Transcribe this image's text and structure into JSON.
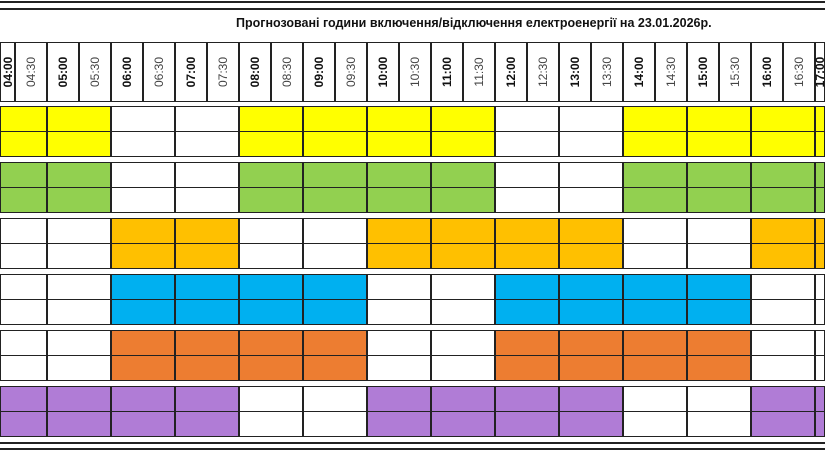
{
  "title": "Прогнозовані години включення/відключення електроенергії на 23.01.2026р.",
  "times": [
    "04:00",
    "04:30",
    "05:00",
    "05:30",
    "06:00",
    "06:30",
    "07:00",
    "07:30",
    "08:00",
    "08:30",
    "09:00",
    "09:30",
    "10:00",
    "10:30",
    "11:00",
    "11:30",
    "12:00",
    "12:30",
    "13:00",
    "13:30",
    "14:00",
    "14:30",
    "15:00",
    "15:30",
    "16:00",
    "16:30",
    "17:00"
  ],
  "hours": [
    "04:00",
    "05:00",
    "06:00",
    "07:00",
    "08:00",
    "09:00",
    "10:00",
    "11:00",
    "12:00",
    "13:00",
    "14:00",
    "15:00",
    "16:00",
    "17:00"
  ],
  "groups": [
    {
      "color": "#FFFF00",
      "on": [
        1,
        1,
        0,
        0,
        1,
        1,
        1,
        1,
        0,
        0,
        1,
        1,
        1,
        1
      ]
    },
    {
      "color": "#92D050",
      "on": [
        1,
        1,
        0,
        0,
        1,
        1,
        1,
        1,
        0,
        0,
        1,
        1,
        1,
        1
      ]
    },
    {
      "color": "#FFC000",
      "on": [
        0,
        0,
        1,
        1,
        0,
        0,
        1,
        1,
        1,
        1,
        0,
        0,
        1,
        1
      ]
    },
    {
      "color": "#00B0F0",
      "on": [
        0,
        0,
        1,
        1,
        1,
        1,
        0,
        0,
        1,
        1,
        1,
        1,
        0,
        0
      ]
    },
    {
      "color": "#ED7D31",
      "on": [
        0,
        0,
        1,
        1,
        1,
        1,
        0,
        0,
        1,
        1,
        1,
        1,
        0,
        0
      ]
    },
    {
      "color": "#B07CD6",
      "on": [
        1,
        1,
        1,
        1,
        0,
        0,
        1,
        1,
        1,
        1,
        0,
        0,
        1,
        1
      ]
    }
  ]
}
